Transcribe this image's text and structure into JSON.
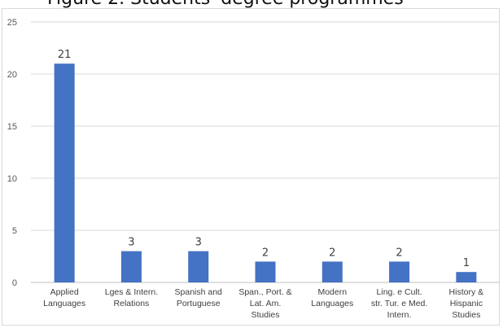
{
  "figure": {
    "title": "Figure 2. Students' degree programmes"
  },
  "chart_data": {
    "type": "bar",
    "categories": [
      [
        "Applied",
        "Languages"
      ],
      [
        "Lges & Intern.",
        "Relations"
      ],
      [
        "Spanish and",
        "Portuguese"
      ],
      [
        "Span., Port. &",
        "Lat. Am.",
        "Studies"
      ],
      [
        "Modern",
        "Languages"
      ],
      [
        "Ling. e Cult.",
        "str. Tur. e Med.",
        "Intern."
      ],
      [
        "History &",
        "Hispanic",
        "Studies"
      ]
    ],
    "values": [
      21,
      3,
      3,
      2,
      2,
      2,
      1
    ],
    "data_labels": [
      "21",
      "3",
      "3",
      "2",
      "2",
      "2",
      "1"
    ],
    "ylim": [
      0,
      25
    ],
    "yticks": [
      0,
      5,
      10,
      15,
      20,
      25
    ],
    "grid": true,
    "legend": "none",
    "bar_color": "#4472c4",
    "grid_color": "#d9d9d9"
  }
}
